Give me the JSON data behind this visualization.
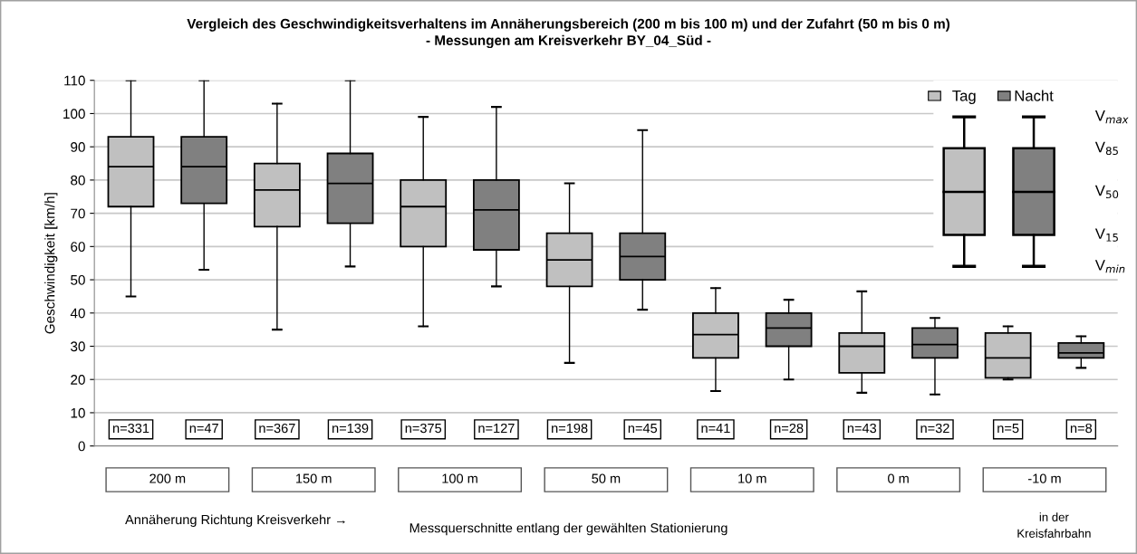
{
  "chart_data": {
    "type": "box",
    "title": "Vergleich des Geschwindigkeitsverhaltens im Annäherungsbereich (200 m bis 100 m) und der Zufahrt (50 m bis 0 m)",
    "subtitle": "- Messungen am Kreisverkehr BY_04_Süd -",
    "ylabel": "Geschwindigkeit [km/h]",
    "categories": [
      "200 m",
      "150 m",
      "100 m",
      "50 m",
      "10 m",
      "0 m",
      "-10 m"
    ],
    "series": [
      {
        "name": "Tag",
        "color": "#c0c0c0",
        "value_labels": [
          "n=331",
          "n=367",
          "n=375",
          "n=198",
          "n=41",
          "n=43",
          "n=5"
        ],
        "boxes": [
          {
            "low": 45,
            "q1": 72,
            "median": 84,
            "q3": 93,
            "high": 110
          },
          {
            "low": 35,
            "q1": 66,
            "median": 77,
            "q3": 85,
            "high": 103
          },
          {
            "low": 36,
            "q1": 60,
            "median": 72,
            "q3": 80,
            "high": 99
          },
          {
            "low": 25,
            "q1": 48,
            "median": 56,
            "q3": 64,
            "high": 79
          },
          {
            "low": 16.5,
            "q1": 26.5,
            "median": 33.5,
            "q3": 40,
            "high": 47.5
          },
          {
            "low": 16,
            "q1": 22,
            "median": 30,
            "q3": 34,
            "high": 46.5
          },
          {
            "low": 20,
            "q1": 20.5,
            "median": 26.5,
            "q3": 34,
            "high": 36
          }
        ]
      },
      {
        "name": "Nacht",
        "color": "#808080",
        "value_labels": [
          "n=47",
          "n=139",
          "n=127",
          "n=45",
          "n=28",
          "n=32",
          "n=8"
        ],
        "boxes": [
          {
            "low": 53,
            "q1": 73,
            "median": 84,
            "q3": 93,
            "high": 110
          },
          {
            "low": 54,
            "q1": 67,
            "median": 79,
            "q3": 88,
            "high": 110
          },
          {
            "low": 48,
            "q1": 59,
            "median": 71,
            "q3": 80,
            "high": 102
          },
          {
            "low": 41,
            "q1": 50,
            "median": 57,
            "q3": 64,
            "high": 95
          },
          {
            "low": 20,
            "q1": 30,
            "median": 35.5,
            "q3": 40,
            "high": 44
          },
          {
            "low": 15.5,
            "q1": 26.5,
            "median": 30.5,
            "q3": 35.5,
            "high": 38.5
          },
          {
            "low": 23.5,
            "q1": 26.5,
            "median": 28,
            "q3": 31,
            "high": 33
          }
        ]
      }
    ],
    "ylim": [
      0,
      110
    ],
    "yticks": [
      0,
      10,
      20,
      30,
      40,
      50,
      60,
      70,
      80,
      90,
      100,
      110
    ],
    "grid": "y",
    "legend": "top right",
    "annotations": [
      "V$_{max}$",
      "V$_{85}$",
      "V$_{50}$",
      "V$_{15}$",
      "V$_{min}$",
      "Annäherung Richtung Kreisverkehr →",
      "Messquerschnitte entlang der gewählten Stationierung",
      "in der\nKreisfahrbahn"
    ]
  }
}
